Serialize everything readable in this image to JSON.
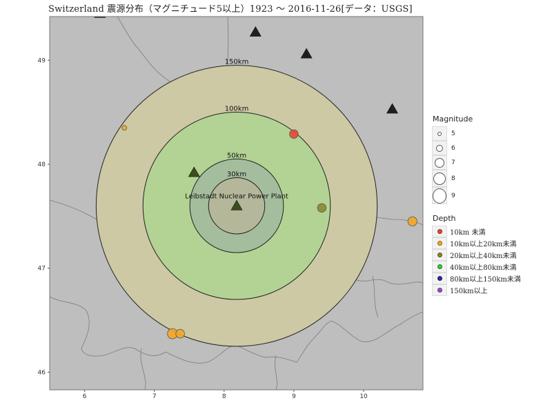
{
  "title": "Switzerland 震源分布（マグニチュード5以上）1923 〜 2016-11-26[データ：USGS]",
  "map": {
    "x_range": [
      5.5,
      10.85
    ],
    "y_range": [
      45.83,
      49.42
    ],
    "x_ticks": [
      "6",
      "7",
      "8",
      "9",
      "10"
    ],
    "y_ticks": [
      "46",
      "47",
      "48",
      "49"
    ],
    "background_color": "#bebebe",
    "border_color": "#777777"
  },
  "plant": {
    "name": "Leibstadt Nuclear Power Plant",
    "lon": 8.18,
    "lat": 47.6
  },
  "rings": [
    {
      "label": "150km",
      "radius_km": 150,
      "fill": "#cdc9a5"
    },
    {
      "label": "100km",
      "radius_km": 100,
      "fill": "#b3d394"
    },
    {
      "label": "50km",
      "radius_km": 50,
      "fill": "#a3bd9d"
    },
    {
      "label": "30km",
      "radius_km": 30,
      "fill": "#b4b79a"
    }
  ],
  "volcanoes": [
    {
      "lon": 6.22,
      "lat": 49.45
    },
    {
      "lon": 8.45,
      "lat": 49.27
    },
    {
      "lon": 9.18,
      "lat": 49.06
    },
    {
      "lon": 10.41,
      "lat": 48.53
    },
    {
      "lon": 7.57,
      "lat": 47.92
    },
    {
      "lon": 8.18,
      "lat": 47.6
    }
  ],
  "earthquakes": [
    {
      "lon": 6.57,
      "lat": 48.35,
      "mag": 5.0,
      "depth_class": 1
    },
    {
      "lon": 9.0,
      "lat": 48.29,
      "mag": 5.8,
      "depth_class": 0
    },
    {
      "lon": 9.4,
      "lat": 47.58,
      "mag": 5.8,
      "depth_class": 2
    },
    {
      "lon": 10.7,
      "lat": 47.45,
      "mag": 5.9,
      "depth_class": 1
    },
    {
      "lon": 7.26,
      "lat": 46.37,
      "mag": 6.1,
      "depth_class": 1
    },
    {
      "lon": 7.37,
      "lat": 46.37,
      "mag": 5.8,
      "depth_class": 1
    }
  ],
  "legend": {
    "magnitude_title": "Magnitude",
    "magnitudes": [
      "5",
      "6",
      "7",
      "8",
      "9"
    ],
    "depth_title": "Depth",
    "depths": [
      {
        "label": "10km 未満",
        "color": "#e34a33"
      },
      {
        "label": "10km以上20km未満",
        "color": "#f5a623"
      },
      {
        "label": "20km以上40km未満",
        "color": "#8a8a2a"
      },
      {
        "label": "40km以上80km未満",
        "color": "#33cc33"
      },
      {
        "label": "80km以上150km未満",
        "color": "#2a2aaa"
      },
      {
        "label": "150km以上",
        "color": "#9b4fc9"
      }
    ]
  }
}
